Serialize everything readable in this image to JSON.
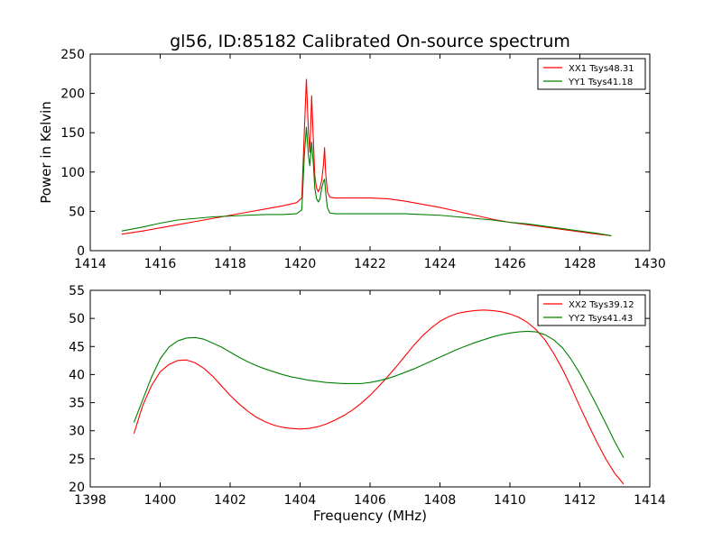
{
  "figure": {
    "title": "gl56, ID:85182 Calibrated On-source spectrum",
    "shared_xlabel": "Frequency (MHz)"
  },
  "chart_data": [
    {
      "type": "line",
      "title": "gl56, ID:85182 Calibrated On-source spectrum",
      "xlabel": "",
      "ylabel": "Power in Kelvin",
      "xlim": [
        1414,
        1430
      ],
      "ylim": [
        0,
        250
      ],
      "xticks": [
        1414,
        1416,
        1418,
        1420,
        1422,
        1424,
        1426,
        1428,
        1430
      ],
      "yticks": [
        0,
        50,
        100,
        150,
        200,
        250
      ],
      "grid": false,
      "legend_position": "top-right",
      "series": [
        {
          "name": "XX1 Tsys48.31",
          "color": "#ff0000",
          "x": [
            1414.9,
            1415.5,
            1416.0,
            1416.5,
            1417.0,
            1417.5,
            1418.0,
            1418.5,
            1419.0,
            1419.5,
            1419.9,
            1420.05,
            1420.12,
            1420.18,
            1420.24,
            1420.28,
            1420.33,
            1420.38,
            1420.42,
            1420.47,
            1420.52,
            1420.57,
            1420.62,
            1420.67,
            1420.7,
            1420.73,
            1420.78,
            1420.85,
            1421.0,
            1421.5,
            1422.0,
            1422.5,
            1423.0,
            1423.5,
            1424.0,
            1424.5,
            1425.0,
            1425.5,
            1426.0,
            1426.5,
            1427.0,
            1427.5,
            1428.0,
            1428.5,
            1428.9
          ],
          "y": [
            21,
            25,
            29,
            33,
            37,
            41,
            45,
            49,
            53,
            57,
            61,
            67,
            150,
            218,
            150,
            125,
            197,
            140,
            95,
            80,
            75,
            80,
            90,
            110,
            131,
            100,
            75,
            68,
            67,
            67,
            67,
            66,
            63,
            59,
            55,
            50,
            45,
            40,
            36,
            33,
            30,
            27,
            24,
            21,
            19
          ]
        },
        {
          "name": "YY1 Tsys41.18",
          "color": "#008000",
          "x": [
            1414.9,
            1415.5,
            1416.0,
            1416.5,
            1417.0,
            1417.5,
            1418.0,
            1418.5,
            1419.0,
            1419.5,
            1419.9,
            1420.05,
            1420.12,
            1420.18,
            1420.24,
            1420.28,
            1420.33,
            1420.38,
            1420.42,
            1420.47,
            1420.52,
            1420.57,
            1420.62,
            1420.67,
            1420.7,
            1420.73,
            1420.78,
            1420.85,
            1421.0,
            1421.5,
            1422.0,
            1422.5,
            1423.0,
            1423.5,
            1424.0,
            1424.5,
            1425.0,
            1425.5,
            1426.0,
            1426.5,
            1427.0,
            1427.5,
            1428.0,
            1428.5,
            1428.9
          ],
          "y": [
            25,
            30,
            35,
            39,
            41,
            43,
            44,
            45,
            46,
            46,
            47,
            52,
            120,
            157,
            120,
            108,
            138,
            110,
            80,
            66,
            62,
            66,
            80,
            88,
            91,
            75,
            55,
            48,
            47,
            47,
            47,
            47,
            47,
            46,
            45,
            43,
            41,
            39,
            36,
            34,
            31,
            28,
            25,
            22,
            19
          ]
        }
      ]
    },
    {
      "type": "line",
      "title": "",
      "xlabel": "Frequency (MHz)",
      "ylabel": "",
      "xlim": [
        1398,
        1414
      ],
      "ylim": [
        20,
        55
      ],
      "xticks": [
        1398,
        1400,
        1402,
        1404,
        1406,
        1408,
        1410,
        1412,
        1414
      ],
      "yticks": [
        20,
        25,
        30,
        35,
        40,
        45,
        50,
        55
      ],
      "grid": false,
      "legend_position": "top-right",
      "series": [
        {
          "name": "XX2 Tsys39.12",
          "color": "#ff0000",
          "x": [
            1399.25,
            1399.5,
            1399.75,
            1400.0,
            1400.25,
            1400.5,
            1400.75,
            1401.0,
            1401.25,
            1401.5,
            1401.75,
            1402.0,
            1402.25,
            1402.5,
            1402.75,
            1403.0,
            1403.25,
            1403.5,
            1403.75,
            1404.0,
            1404.25,
            1404.5,
            1404.75,
            1405.0,
            1405.25,
            1405.5,
            1405.75,
            1406.0,
            1406.25,
            1406.5,
            1406.75,
            1407.0,
            1407.25,
            1407.5,
            1407.75,
            1408.0,
            1408.25,
            1408.5,
            1408.75,
            1409.0,
            1409.25,
            1409.5,
            1409.75,
            1410.0,
            1410.25,
            1410.5,
            1410.75,
            1411.0,
            1411.25,
            1411.5,
            1411.75,
            1412.0,
            1412.25,
            1412.5,
            1412.75,
            1413.0,
            1413.25
          ],
          "y": [
            29.5,
            34.5,
            38.0,
            40.5,
            41.8,
            42.5,
            42.6,
            42.1,
            41.1,
            39.7,
            38.0,
            36.3,
            34.8,
            33.5,
            32.4,
            31.6,
            31.0,
            30.6,
            30.4,
            30.3,
            30.4,
            30.7,
            31.2,
            31.9,
            32.7,
            33.7,
            34.9,
            36.3,
            37.9,
            39.6,
            41.4,
            43.3,
            45.2,
            46.9,
            48.3,
            49.5,
            50.3,
            50.9,
            51.2,
            51.4,
            51.5,
            51.4,
            51.2,
            50.8,
            50.2,
            49.3,
            48.0,
            46.2,
            43.8,
            41.0,
            37.8,
            34.3,
            31.0,
            27.8,
            24.9,
            22.4,
            20.5
          ]
        },
        {
          "name": "YY2 Tsys41.43",
          "color": "#008000",
          "x": [
            1399.25,
            1399.5,
            1399.75,
            1400.0,
            1400.25,
            1400.5,
            1400.75,
            1401.0,
            1401.25,
            1401.5,
            1401.75,
            1402.0,
            1402.25,
            1402.5,
            1402.75,
            1403.0,
            1403.25,
            1403.5,
            1403.75,
            1404.0,
            1404.25,
            1404.5,
            1404.75,
            1405.0,
            1405.25,
            1405.5,
            1405.75,
            1406.0,
            1406.25,
            1406.5,
            1406.75,
            1407.0,
            1407.25,
            1407.5,
            1407.75,
            1408.0,
            1408.25,
            1408.5,
            1408.75,
            1409.0,
            1409.25,
            1409.5,
            1409.75,
            1410.0,
            1410.25,
            1410.5,
            1410.75,
            1411.0,
            1411.25,
            1411.5,
            1411.75,
            1412.0,
            1412.25,
            1412.5,
            1412.75,
            1413.0,
            1413.25
          ],
          "y": [
            31.5,
            35.5,
            39.5,
            42.8,
            44.9,
            46.0,
            46.5,
            46.6,
            46.3,
            45.6,
            44.9,
            44.0,
            43.1,
            42.3,
            41.6,
            41.0,
            40.5,
            40.0,
            39.6,
            39.3,
            39.0,
            38.8,
            38.6,
            38.5,
            38.4,
            38.4,
            38.4,
            38.6,
            38.9,
            39.3,
            39.8,
            40.4,
            41.0,
            41.7,
            42.4,
            43.1,
            43.8,
            44.5,
            45.1,
            45.7,
            46.2,
            46.7,
            47.1,
            47.4,
            47.6,
            47.7,
            47.6,
            47.1,
            46.2,
            44.8,
            42.7,
            40.2,
            37.3,
            34.3,
            31.2,
            28.0,
            25.2
          ]
        }
      ]
    }
  ]
}
